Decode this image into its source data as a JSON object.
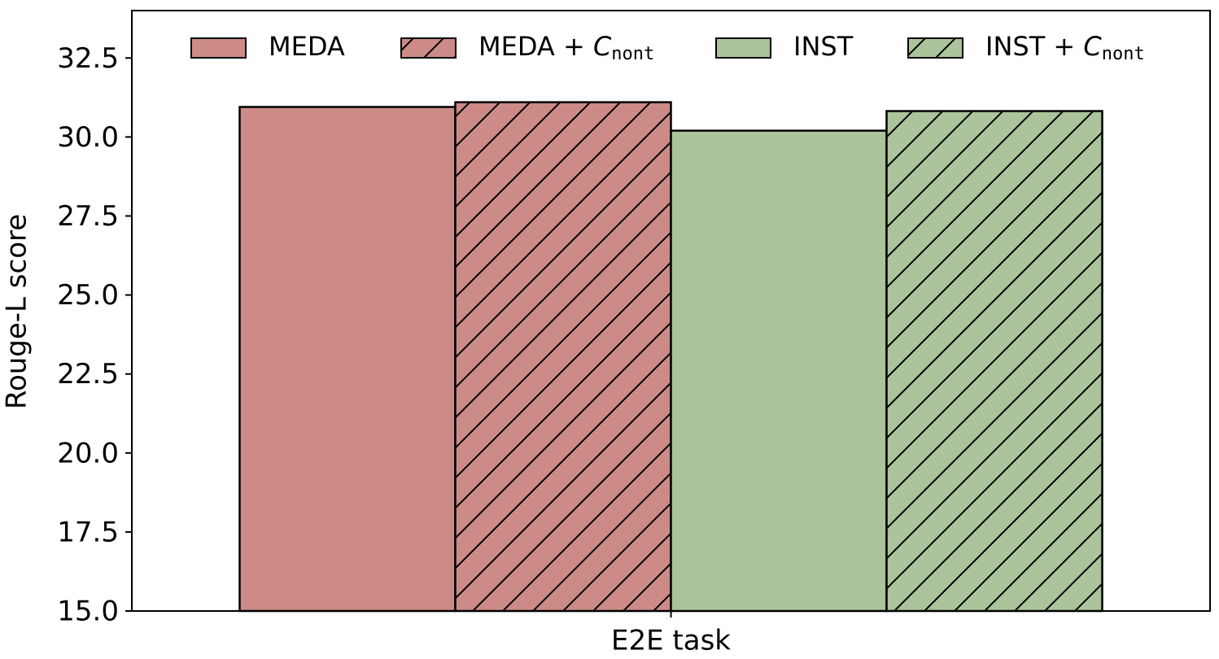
{
  "chart_data": {
    "type": "bar",
    "ylabel": "Rouge-L score",
    "categories": [
      "E2E task"
    ],
    "series": [
      {
        "name": "MEDA",
        "color": "#cd8b87",
        "hatch": false,
        "values": [
          30.95
        ]
      },
      {
        "name": "MEDA + ",
        "name_italic": "C",
        "name_subscript": "nont",
        "color": "#cd8b87",
        "hatch": true,
        "values": [
          31.1
        ]
      },
      {
        "name": "INST",
        "color": "#abc49b",
        "hatch": false,
        "values": [
          30.2
        ]
      },
      {
        "name": "INST + ",
        "name_italic": "C",
        "name_subscript": "nont",
        "color": "#abc49b",
        "hatch": true,
        "values": [
          30.82
        ]
      }
    ],
    "ylim": [
      15,
      34
    ],
    "yticks": [
      {
        "value": 15,
        "label": "15.0"
      },
      {
        "value": 17.5,
        "label": "17.5"
      },
      {
        "value": 20,
        "label": "20.0"
      },
      {
        "value": 22.5,
        "label": "22.5"
      },
      {
        "value": 25,
        "label": "25.0"
      },
      {
        "value": 27.5,
        "label": "27.5"
      },
      {
        "value": 30,
        "label": "30.0"
      },
      {
        "value": 32.5,
        "label": "32.5"
      }
    ],
    "grid": false,
    "legend": "top"
  }
}
